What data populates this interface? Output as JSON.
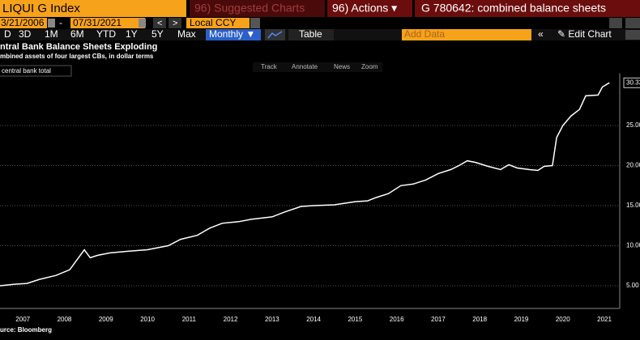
{
  "toolbar": {
    "security": "LIQUI G Index",
    "suggested": "96) Suggested Charts",
    "actions": "96) Actions ▾",
    "chart_name": "G 780642: combined balance sheets",
    "start_date": "3/21/2006",
    "end_date": "07/31/2021",
    "currency": "Local CCY",
    "periods": [
      "D",
      "3D",
      "1M",
      "6M",
      "YTD",
      "1Y",
      "5Y",
      "Max"
    ],
    "frequency": "Monthly ▼",
    "table": "Table",
    "add_data": "Add Data",
    "edit_chart": "✎ Edit Chart",
    "tools": [
      "Track",
      "Annotate",
      "News",
      "Zoom"
    ]
  },
  "chart_data": {
    "type": "line",
    "title": "ntral Bank Balance Sheets Exploding",
    "subtitle": "mbined assets of four largest CBs, in dollar terms",
    "source": "urce: Bloomberg",
    "x": [
      2006.95,
      2007.3,
      2007.6,
      2007.9,
      2008.3,
      2008.63,
      2008.98,
      2009.12,
      2009.3,
      2009.6,
      2010.0,
      2010.5,
      2011.0,
      2011.3,
      2011.7,
      2012.0,
      2012.3,
      2012.7,
      2013.0,
      2013.5,
      2013.8,
      2014.2,
      2014.5,
      2015.0,
      2015.5,
      2015.8,
      2016.0,
      2016.3,
      2016.6,
      2016.9,
      2017.2,
      2017.5,
      2017.8,
      2018.0,
      2018.2,
      2018.4,
      2018.7,
      2019.0,
      2019.2,
      2019.4,
      2019.7,
      2019.9,
      2020.05,
      2020.25,
      2020.35,
      2020.5,
      2020.7,
      2020.9,
      2021.05,
      2021.35,
      2021.45,
      2021.62
    ],
    "series": [
      {
        "name": "central bank total",
        "color": "#ffffff",
        "values": [
          5.0,
          5.2,
          5.3,
          5.8,
          6.3,
          7.0,
          9.5,
          8.5,
          8.8,
          9.1,
          9.3,
          9.5,
          10.0,
          10.8,
          11.3,
          12.2,
          12.8,
          13.0,
          13.3,
          13.6,
          14.2,
          14.9,
          15.0,
          15.1,
          15.5,
          15.6,
          16.0,
          16.5,
          17.5,
          17.7,
          18.2,
          19.0,
          19.5,
          20.0,
          20.6,
          20.4,
          19.9,
          19.5,
          20.1,
          19.7,
          19.5,
          19.4,
          19.9,
          20.0,
          23.5,
          25.0,
          26.2,
          27.0,
          28.7,
          28.8,
          29.8,
          30.33
        ],
        "value_labels": [
          null,
          null,
          null,
          null,
          null,
          null,
          null,
          null,
          null,
          null,
          null,
          null,
          null,
          null,
          null,
          null,
          null,
          null,
          null,
          null,
          null,
          null,
          null,
          null,
          null,
          null,
          null,
          null,
          null,
          null,
          null,
          null,
          null,
          null,
          null,
          null,
          null,
          null,
          null,
          null,
          null,
          null,
          null,
          null,
          null,
          null,
          null,
          null,
          null,
          null,
          null,
          "30.33"
        ]
      }
    ],
    "xlim": [
      2006.95,
      2021.87
    ],
    "ylim": [
      2.5,
      31.0
    ],
    "xticks": [
      {
        "value": 2007.5,
        "label": "2007"
      },
      {
        "value": 2008.5,
        "label": "2008"
      },
      {
        "value": 2009.5,
        "label": "2009"
      },
      {
        "value": 2010.5,
        "label": "2010"
      },
      {
        "value": 2011.5,
        "label": "2011"
      },
      {
        "value": 2012.5,
        "label": "2012"
      },
      {
        "value": 2013.5,
        "label": "2013"
      },
      {
        "value": 2014.5,
        "label": "2014"
      },
      {
        "value": 2015.5,
        "label": "2015"
      },
      {
        "value": 2016.5,
        "label": "2016"
      },
      {
        "value": 2017.5,
        "label": "2017"
      },
      {
        "value": 2018.5,
        "label": "2018"
      },
      {
        "value": 2019.5,
        "label": "2019"
      },
      {
        "value": 2020.5,
        "label": "2020"
      },
      {
        "value": 2021.5,
        "label": "2021"
      }
    ],
    "yticks": [
      {
        "value": 5,
        "label": "5.00"
      },
      {
        "value": 10,
        "label": "10.00"
      },
      {
        "value": 15,
        "label": "15.00"
      },
      {
        "value": 20,
        "label": "20.00"
      },
      {
        "value": 25,
        "label": "25.00"
      }
    ],
    "grid": true
  }
}
